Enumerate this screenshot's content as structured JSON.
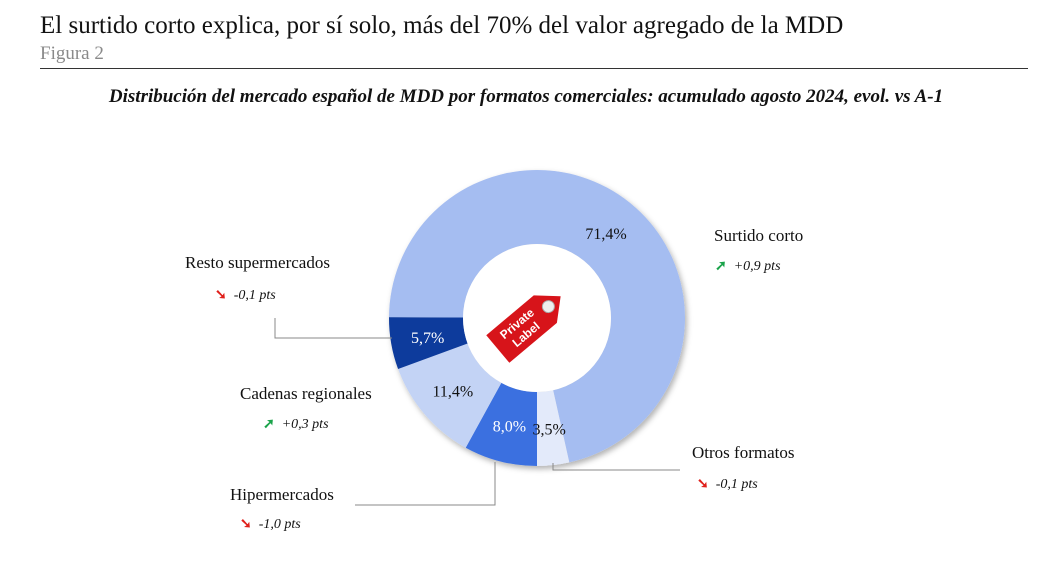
{
  "header": {
    "title": "El surtido corto explica, por sí solo, más del 70% del valor agregado de la MDD",
    "figure": "Figura 2"
  },
  "chart_data": {
    "type": "pie",
    "donut": true,
    "title": "Distribución del mercado español de MDD por formatos comerciales: acumulado agosto 2024, evol. vs A-1",
    "center_logo": "Private Label",
    "slices": [
      {
        "name": "Hipermercados",
        "value": 8.0,
        "label": "8,0%",
        "change": "-1,0 pts",
        "trend": "down",
        "color": "#3b6fe0"
      },
      {
        "name": "Cadenas regionales",
        "value": 11.4,
        "label": "11,4%",
        "change": "+0,3 pts",
        "trend": "up",
        "color": "#c3d3f5"
      },
      {
        "name": "Resto supermercados",
        "value": 5.7,
        "label": "5,7%",
        "change": "-0,1 pts",
        "trend": "down",
        "color": "#0d3b9c"
      },
      {
        "name": "Surtido corto",
        "value": 71.4,
        "label": "71,4%",
        "change": "+0,9 pts",
        "trend": "up",
        "color": "#a5bdf1"
      },
      {
        "name": "Otros formatos",
        "value": 3.5,
        "label": "3,5%",
        "change": "-0,1 pts",
        "trend": "down",
        "color": "#e3eafa"
      }
    ],
    "trend_colors": {
      "up": "#1aa34a",
      "down": "#e0201b"
    }
  }
}
